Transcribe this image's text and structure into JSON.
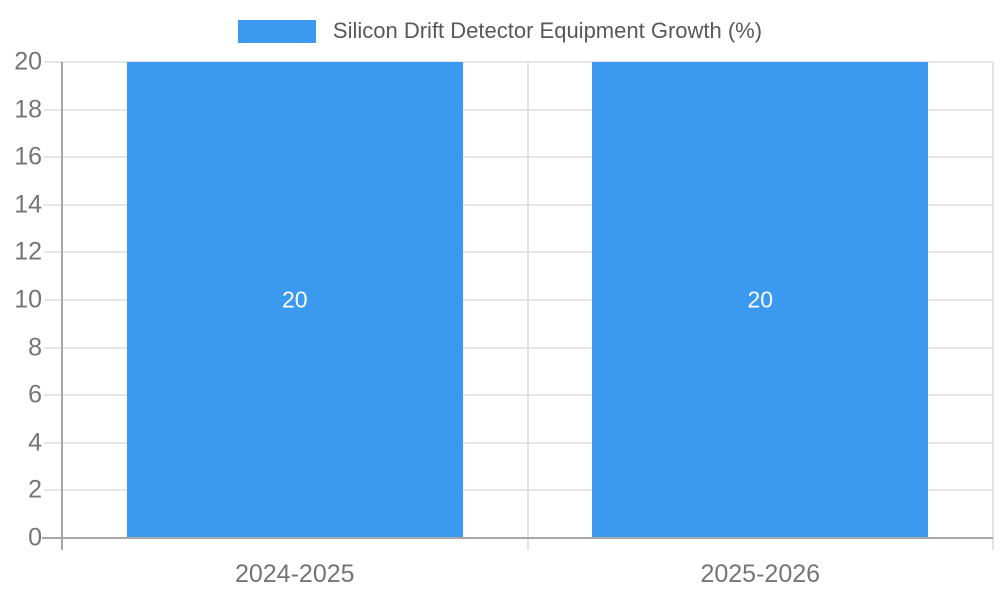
{
  "chart_data": {
    "type": "bar",
    "title": "Silicon Drift Detector Equipment Growth (%)",
    "categories": [
      "2024-2025",
      "2025-2026"
    ],
    "values": [
      20,
      20
    ],
    "value_labels": [
      "20",
      "20"
    ],
    "xlabel": "",
    "ylabel": "",
    "ylim": [
      0,
      20
    ],
    "yticks": [
      0,
      2,
      4,
      6,
      8,
      10,
      12,
      14,
      16,
      18,
      20
    ],
    "grid": true,
    "legend_position": "top-center"
  },
  "colors": {
    "bar": "#3b99f0",
    "value_label": "#ffffff",
    "gridline": "#e6e6e6",
    "category_separator": "#e3e3e3",
    "axis_line": "#a6a6a6",
    "axis_text": "#757575",
    "legend_text": "#595959"
  }
}
